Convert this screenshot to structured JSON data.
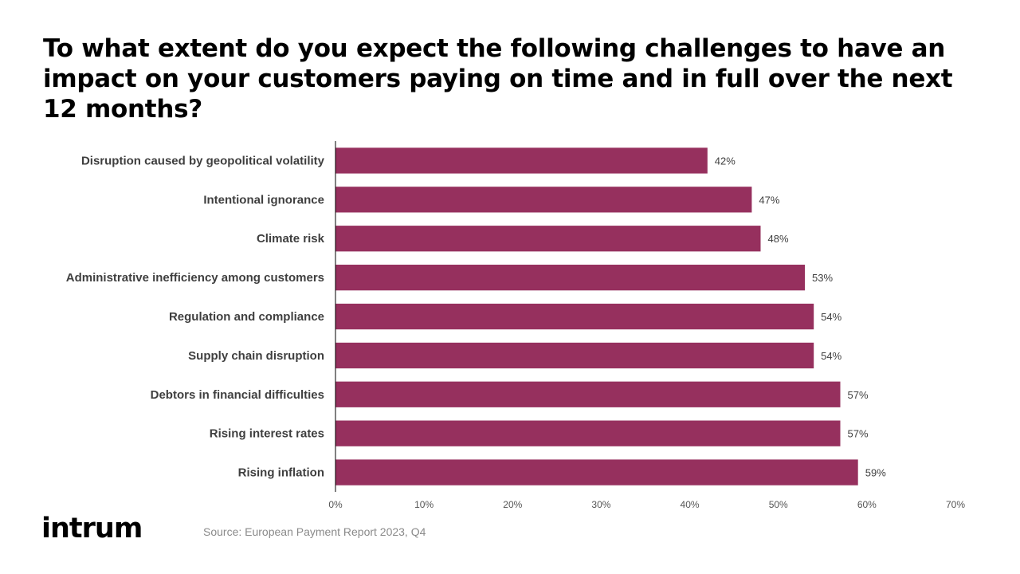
{
  "title": "To what extent do you expect the following challenges to have an impact on your customers paying on time and in full over the next 12 months?",
  "source": "Source: European Payment Report 2023, Q4",
  "logo": "intrum",
  "colors": {
    "bar": "#96305e",
    "axis": "#000000"
  },
  "chart_data": {
    "type": "bar",
    "orientation": "horizontal",
    "categories": [
      "Disruption caused by geopolitical volatility",
      "Intentional ignorance",
      "Climate risk",
      "Administrative inefficiency among customers",
      "Regulation and compliance",
      "Supply chain disruption",
      "Debtors in financial difficulties",
      "Rising interest rates",
      "Rising inflation"
    ],
    "values": [
      42,
      47,
      48,
      53,
      54,
      54,
      57,
      57,
      59
    ],
    "value_labels": [
      "42%",
      "47%",
      "48%",
      "53%",
      "54%",
      "54%",
      "57%",
      "57%",
      "59%"
    ],
    "xlim": [
      0,
      70
    ],
    "x_ticks": [
      0,
      10,
      20,
      30,
      40,
      50,
      60,
      70
    ],
    "x_tick_labels": [
      "0%",
      "10%",
      "20%",
      "30%",
      "40%",
      "50%",
      "60%",
      "70%"
    ],
    "grid": false,
    "legend": "none"
  }
}
